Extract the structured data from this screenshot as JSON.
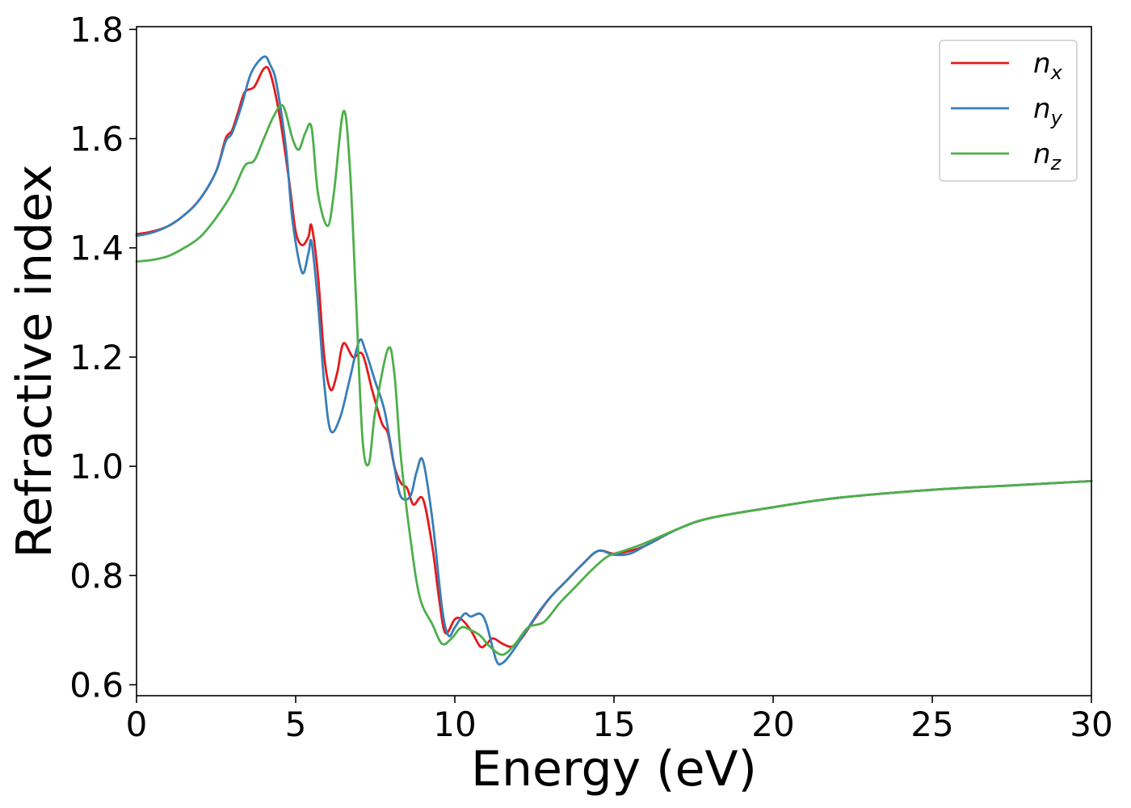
{
  "chart_data": {
    "type": "line",
    "xlabel": "Energy (eV)",
    "ylabel": "Refractive index",
    "xlim": [
      0,
      30
    ],
    "ylim": [
      0.58,
      1.805
    ],
    "xticks": [
      0,
      5,
      10,
      15,
      20,
      25,
      30
    ],
    "xtick_labels": [
      "0",
      "5",
      "10",
      "15",
      "20",
      "25",
      "30"
    ],
    "yticks": [
      0.6,
      0.8,
      1.0,
      1.2,
      1.4,
      1.6,
      1.8
    ],
    "ytick_labels": [
      "0.6",
      "0.8",
      "1.0",
      "1.2",
      "1.4",
      "1.6",
      "1.8"
    ],
    "grid": false,
    "legend_position": "top-right",
    "series": [
      {
        "name": "n",
        "subscript": "x",
        "color": "#e41a1c",
        "points": [
          [
            0,
            1.425
          ],
          [
            0.5,
            1.43
          ],
          [
            1,
            1.44
          ],
          [
            1.5,
            1.46
          ],
          [
            2,
            1.49
          ],
          [
            2.5,
            1.54
          ],
          [
            2.8,
            1.6
          ],
          [
            3,
            1.615
          ],
          [
            3.2,
            1.65
          ],
          [
            3.4,
            1.685
          ],
          [
            3.7,
            1.695
          ],
          [
            4,
            1.728
          ],
          [
            4.2,
            1.72
          ],
          [
            4.5,
            1.64
          ],
          [
            4.8,
            1.52
          ],
          [
            5,
            1.43
          ],
          [
            5.2,
            1.405
          ],
          [
            5.4,
            1.42
          ],
          [
            5.5,
            1.44
          ],
          [
            5.7,
            1.35
          ],
          [
            5.9,
            1.2
          ],
          [
            6.1,
            1.14
          ],
          [
            6.3,
            1.17
          ],
          [
            6.5,
            1.225
          ],
          [
            6.8,
            1.2
          ],
          [
            7.1,
            1.205
          ],
          [
            7.4,
            1.14
          ],
          [
            7.7,
            1.08
          ],
          [
            7.9,
            1.06
          ],
          [
            8.1,
            1.0
          ],
          [
            8.3,
            0.97
          ],
          [
            8.5,
            0.96
          ],
          [
            8.7,
            0.93
          ],
          [
            9,
            0.94
          ],
          [
            9.3,
            0.85
          ],
          [
            9.5,
            0.76
          ],
          [
            9.7,
            0.695
          ],
          [
            10,
            0.72
          ],
          [
            10.2,
            0.72
          ],
          [
            10.5,
            0.7
          ],
          [
            10.8,
            0.67
          ],
          [
            11,
            0.675
          ],
          [
            11.2,
            0.685
          ],
          [
            11.5,
            0.675
          ],
          [
            11.8,
            0.67
          ],
          [
            12.1,
            0.685
          ],
          [
            12.5,
            0.72
          ],
          [
            13,
            0.76
          ],
          [
            13.5,
            0.79
          ],
          [
            14,
            0.82
          ],
          [
            14.5,
            0.845
          ],
          [
            15,
            0.84
          ],
          [
            15.5,
            0.845
          ],
          [
            16,
            0.855
          ],
          [
            17,
            0.885
          ],
          [
            18,
            0.905
          ],
          [
            20,
            0.925
          ],
          [
            22,
            0.942
          ],
          [
            25,
            0.957
          ],
          [
            27.5,
            0.965
          ],
          [
            30,
            0.973
          ]
        ]
      },
      {
        "name": "n",
        "subscript": "y",
        "color": "#377eb8",
        "points": [
          [
            0,
            1.422
          ],
          [
            0.5,
            1.428
          ],
          [
            1,
            1.44
          ],
          [
            1.5,
            1.46
          ],
          [
            2,
            1.49
          ],
          [
            2.5,
            1.54
          ],
          [
            2.8,
            1.595
          ],
          [
            3,
            1.61
          ],
          [
            3.3,
            1.66
          ],
          [
            3.6,
            1.72
          ],
          [
            4,
            1.75
          ],
          [
            4.2,
            1.735
          ],
          [
            4.4,
            1.7
          ],
          [
            4.7,
            1.58
          ],
          [
            4.9,
            1.45
          ],
          [
            5.2,
            1.355
          ],
          [
            5.4,
            1.39
          ],
          [
            5.5,
            1.41
          ],
          [
            5.7,
            1.3
          ],
          [
            5.9,
            1.15
          ],
          [
            6.1,
            1.065
          ],
          [
            6.4,
            1.09
          ],
          [
            6.7,
            1.16
          ],
          [
            7,
            1.23
          ],
          [
            7.2,
            1.21
          ],
          [
            7.5,
            1.155
          ],
          [
            7.8,
            1.1
          ],
          [
            8.1,
            1.0
          ],
          [
            8.3,
            0.945
          ],
          [
            8.6,
            0.945
          ],
          [
            8.8,
            0.99
          ],
          [
            9,
            1.01
          ],
          [
            9.3,
            0.9
          ],
          [
            9.6,
            0.74
          ],
          [
            9.8,
            0.69
          ],
          [
            10,
            0.705
          ],
          [
            10.3,
            0.73
          ],
          [
            10.5,
            0.725
          ],
          [
            10.8,
            0.73
          ],
          [
            11,
            0.71
          ],
          [
            11.3,
            0.645
          ],
          [
            11.5,
            0.64
          ],
          [
            11.8,
            0.66
          ],
          [
            12.2,
            0.695
          ],
          [
            12.6,
            0.73
          ],
          [
            13,
            0.76
          ],
          [
            13.5,
            0.79
          ],
          [
            14,
            0.82
          ],
          [
            14.5,
            0.845
          ],
          [
            15,
            0.838
          ],
          [
            15.5,
            0.84
          ],
          [
            16,
            0.855
          ],
          [
            17,
            0.885
          ],
          [
            18,
            0.905
          ],
          [
            20,
            0.925
          ],
          [
            22,
            0.942
          ],
          [
            25,
            0.957
          ],
          [
            27.5,
            0.965
          ],
          [
            30,
            0.973
          ]
        ]
      },
      {
        "name": "n",
        "subscript": "z",
        "color": "#4daf4a",
        "points": [
          [
            0,
            1.375
          ],
          [
            0.5,
            1.378
          ],
          [
            1,
            1.385
          ],
          [
            1.5,
            1.4
          ],
          [
            2,
            1.42
          ],
          [
            2.5,
            1.455
          ],
          [
            3,
            1.5
          ],
          [
            3.4,
            1.55
          ],
          [
            3.7,
            1.56
          ],
          [
            4,
            1.6
          ],
          [
            4.3,
            1.64
          ],
          [
            4.6,
            1.66
          ],
          [
            4.9,
            1.6
          ],
          [
            5.1,
            1.58
          ],
          [
            5.3,
            1.61
          ],
          [
            5.5,
            1.62
          ],
          [
            5.7,
            1.5
          ],
          [
            6,
            1.44
          ],
          [
            6.2,
            1.5
          ],
          [
            6.5,
            1.65
          ],
          [
            6.7,
            1.55
          ],
          [
            6.9,
            1.3
          ],
          [
            7.1,
            1.05
          ],
          [
            7.3,
            1.005
          ],
          [
            7.5,
            1.1
          ],
          [
            7.9,
            1.215
          ],
          [
            8.1,
            1.17
          ],
          [
            8.3,
            1.02
          ],
          [
            8.6,
            0.87
          ],
          [
            8.9,
            0.76
          ],
          [
            9.3,
            0.71
          ],
          [
            9.6,
            0.675
          ],
          [
            9.9,
            0.685
          ],
          [
            10.2,
            0.705
          ],
          [
            10.5,
            0.7
          ],
          [
            10.8,
            0.69
          ],
          [
            11.1,
            0.67
          ],
          [
            11.5,
            0.655
          ],
          [
            11.9,
            0.675
          ],
          [
            12.3,
            0.705
          ],
          [
            12.8,
            0.715
          ],
          [
            13.3,
            0.75
          ],
          [
            13.8,
            0.78
          ],
          [
            14.3,
            0.81
          ],
          [
            14.8,
            0.835
          ],
          [
            15.3,
            0.845
          ],
          [
            16,
            0.86
          ],
          [
            17,
            0.885
          ],
          [
            18,
            0.905
          ],
          [
            20,
            0.925
          ],
          [
            22,
            0.942
          ],
          [
            25,
            0.957
          ],
          [
            27.5,
            0.965
          ],
          [
            30,
            0.973
          ]
        ]
      }
    ]
  }
}
